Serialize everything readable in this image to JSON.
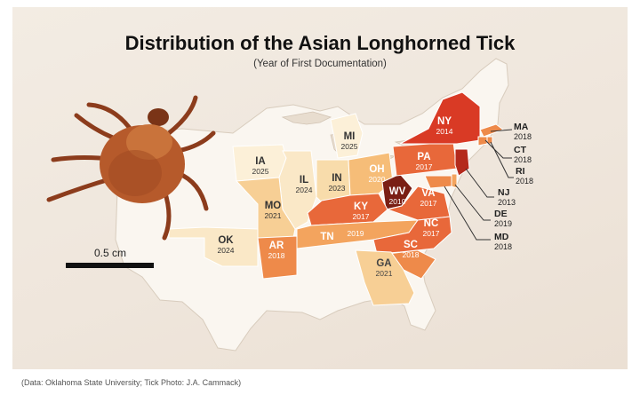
{
  "header": {
    "title": "Distribution of the Asian Longhorned Tick",
    "subtitle": "(Year of First Documentation)"
  },
  "scale": {
    "label": "0.5 cm"
  },
  "credit": "(Data: Oklahoma State University; Tick Photo: J.A. Cammack)",
  "colors": {
    "background": "#efe6dc",
    "land": "#fbf8f3",
    "y2010": "#7a1e14",
    "y2013": "#b42a1c",
    "y2014": "#d93a25",
    "y2017": "#e8683a",
    "y2018": "#ee8a4a",
    "y2019": "#f3a45e",
    "y2020": "#f6bd78",
    "y2021": "#f7cf95",
    "y2023": "#f8dcab",
    "y2024": "#fae8c7",
    "y2025": "#fcf0d8"
  },
  "states": [
    {
      "abbr": "NY",
      "year": "2014"
    },
    {
      "abbr": "PA",
      "year": "2017"
    },
    {
      "abbr": "MI",
      "year": "2025"
    },
    {
      "abbr": "IA",
      "year": "2025"
    },
    {
      "abbr": "IL",
      "year": "2024"
    },
    {
      "abbr": "IN",
      "year": "2023"
    },
    {
      "abbr": "OH",
      "year": "2020"
    },
    {
      "abbr": "WV",
      "year": "2010"
    },
    {
      "abbr": "VA",
      "year": "2017"
    },
    {
      "abbr": "KY",
      "year": "2017"
    },
    {
      "abbr": "MO",
      "year": "2021"
    },
    {
      "abbr": "OK",
      "year": "2024"
    },
    {
      "abbr": "AR",
      "year": "2018"
    },
    {
      "abbr": "TN",
      "year": "2019"
    },
    {
      "abbr": "NC",
      "year": "2017"
    },
    {
      "abbr": "SC",
      "year": "2018"
    },
    {
      "abbr": "GA",
      "year": "2021"
    }
  ],
  "callouts": [
    {
      "abbr": "MA",
      "year": "2018"
    },
    {
      "abbr": "CT",
      "year": "2018"
    },
    {
      "abbr": "RI",
      "year": "2018"
    },
    {
      "abbr": "NJ",
      "year": "2013"
    },
    {
      "abbr": "DE",
      "year": "2019"
    },
    {
      "abbr": "MD",
      "year": "2018"
    }
  ]
}
